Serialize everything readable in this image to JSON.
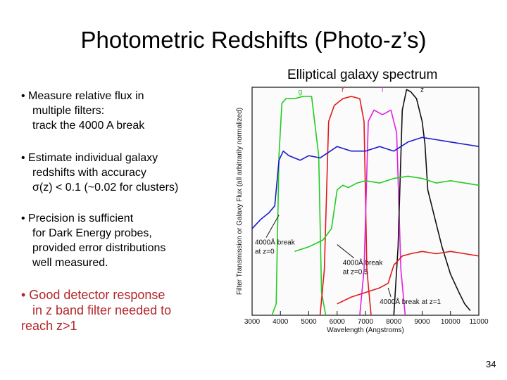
{
  "slide": {
    "title": "Photometric Redshifts (Photo-z’s)",
    "figure_caption": "Elliptical galaxy spectrum",
    "page_number": "34"
  },
  "bullets": [
    {
      "lines": [
        "• Measure relative flux in",
        "multiple filters:",
        "track the 4000 A break"
      ]
    },
    {
      "lines": [
        "• Estimate individual galaxy",
        "redshifts with accuracy",
        "σ(z) < 0.1 (~0.02 for clusters)"
      ]
    },
    {
      "lines": [
        "• Precision is sufficient",
        "for Dark Energy probes,",
        "provided error distributions",
        "well measured."
      ]
    },
    {
      "lines": [
        "• Good detector response",
        "in z band filter needed to",
        "reach z>1"
      ],
      "color": "#b3262a"
    }
  ],
  "chart_data": {
    "type": "line",
    "xlabel": "Wavelength (Angstroms)",
    "ylabel": "Filter Transmission or Galaxy Flux (all arbitrarily normalized)",
    "xlim": [
      3000,
      11000
    ],
    "ylim": [
      0,
      1
    ],
    "x_ticks": [
      "3000",
      "4000",
      "5000",
      "6000",
      "7000",
      "8000",
      "9000",
      "10000",
      "11000"
    ],
    "filter_labels": [
      {
        "text": "g",
        "x": 4700,
        "y": 0.97
      },
      {
        "text": "r",
        "x": 6200,
        "y": 0.98
      },
      {
        "text": "i",
        "x": 7600,
        "y": 0.98
      },
      {
        "text": "z",
        "x": 9000,
        "y": 0.98
      }
    ],
    "annotations": [
      {
        "lines": [
          "4000Å break",
          "at z=0"
        ],
        "x": 3000,
        "y": 0.31,
        "ax": 3950,
        "ay": 0.44
      },
      {
        "lines": [
          "4000Å break",
          "at z=0.5"
        ],
        "x": 6100,
        "y": 0.22,
        "ax": 6000,
        "ay": 0.31
      },
      {
        "lines": [
          "4000Å break at z=1"
        ],
        "x": 7400,
        "y": 0.05,
        "ax": 7800,
        "ay": 0.12
      }
    ],
    "colors": {
      "g": "#22cc22",
      "r": "#e01a1a",
      "i": "#e020e0",
      "z": "#111111",
      "spec_z0": "#1a1acc",
      "spec_z05": "#22cc22",
      "spec_z1": "#e01a1a"
    },
    "series": [
      {
        "key": "g",
        "x": [
          3700,
          3850,
          3950,
          4050,
          4200,
          4500,
          4800,
          5100,
          5350,
          5450,
          5600
        ],
        "y": [
          0.0,
          0.05,
          0.7,
          0.93,
          0.95,
          0.95,
          0.96,
          0.96,
          0.7,
          0.1,
          0.0
        ]
      },
      {
        "key": "r",
        "x": [
          5400,
          5550,
          5700,
          5900,
          6200,
          6500,
          6800,
          6950,
          7050,
          7200
        ],
        "y": [
          0.0,
          0.2,
          0.85,
          0.92,
          0.95,
          0.96,
          0.95,
          0.85,
          0.2,
          0.0
        ]
      },
      {
        "key": "i",
        "x": [
          6800,
          6950,
          7100,
          7300,
          7600,
          7900,
          8100,
          8250,
          8400
        ],
        "y": [
          0.0,
          0.2,
          0.85,
          0.9,
          0.88,
          0.9,
          0.8,
          0.2,
          0.0
        ]
      },
      {
        "key": "z",
        "x": [
          8000,
          8150,
          8300,
          8450,
          8600,
          8800,
          9000,
          9100,
          9200,
          9500,
          9700,
          10000,
          10300,
          10500,
          10700
        ],
        "y": [
          0.0,
          0.3,
          0.9,
          0.99,
          0.98,
          0.95,
          0.85,
          0.75,
          0.55,
          0.4,
          0.3,
          0.18,
          0.1,
          0.05,
          0.02
        ]
      },
      {
        "key": "spec_z0",
        "x": [
          3000,
          3300,
          3600,
          3800,
          3950,
          4100,
          4300,
          4700,
          5000,
          5400,
          6000,
          6500,
          7000,
          7500,
          8000,
          8500,
          9000,
          9500,
          10000,
          10500,
          11000
        ],
        "y": [
          0.38,
          0.42,
          0.45,
          0.48,
          0.68,
          0.72,
          0.7,
          0.68,
          0.7,
          0.69,
          0.74,
          0.72,
          0.72,
          0.74,
          0.72,
          0.76,
          0.78,
          0.77,
          0.76,
          0.75,
          0.74
        ]
      },
      {
        "key": "spec_z05",
        "x": [
          4500,
          5000,
          5500,
          5800,
          6000,
          6200,
          6400,
          6700,
          7000,
          7500,
          8000,
          8500,
          9000,
          9500,
          10000,
          10500,
          11000
        ],
        "y": [
          0.28,
          0.3,
          0.33,
          0.38,
          0.55,
          0.57,
          0.56,
          0.58,
          0.59,
          0.58,
          0.6,
          0.61,
          0.6,
          0.58,
          0.59,
          0.58,
          0.57
        ]
      },
      {
        "key": "spec_z1",
        "x": [
          6000,
          6500,
          7000,
          7500,
          7800,
          8000,
          8300,
          8600,
          9000,
          9500,
          10000,
          10500,
          11000
        ],
        "y": [
          0.05,
          0.08,
          0.1,
          0.12,
          0.14,
          0.22,
          0.26,
          0.27,
          0.28,
          0.27,
          0.28,
          0.27,
          0.26
        ]
      }
    ]
  }
}
